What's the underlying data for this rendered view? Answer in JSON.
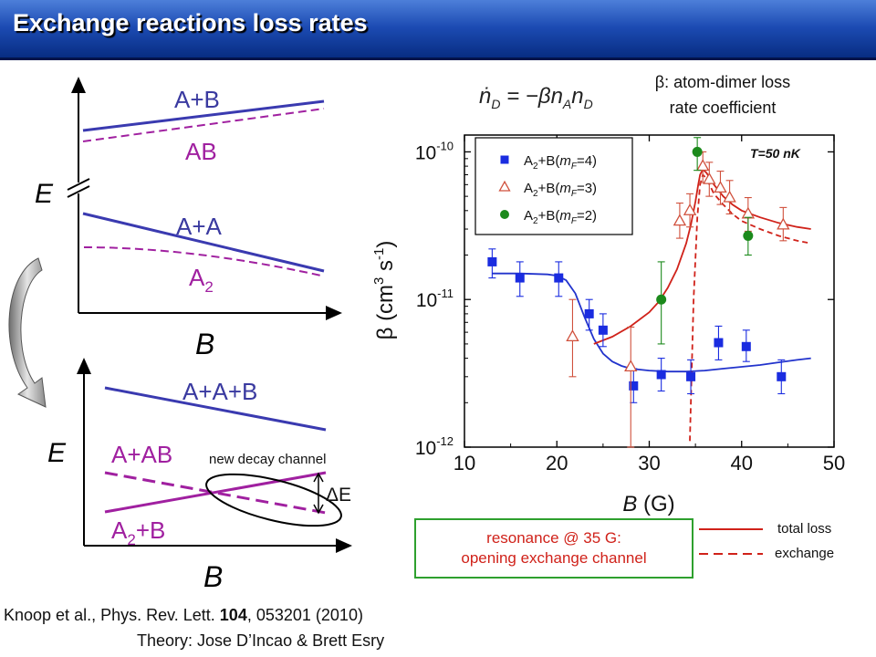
{
  "header": {
    "title": "Exchange reactions loss rates"
  },
  "diagram_top": {
    "axis_y_label": "E",
    "axis_x_label": "B",
    "labels": {
      "ab_upper": "A+B",
      "ab_lower": "AB",
      "aa_upper": "A+A",
      "a2_base": "A",
      "a2_sub": "2"
    }
  },
  "diagram_bottom": {
    "axis_y_label": "E",
    "axis_x_label": "B",
    "labels": {
      "aab": "A+A+B",
      "aab2": "A+AB",
      "a2b_base": "A",
      "a2b_sub": "2",
      "a2b_suffix": "+B",
      "new_decay": "new decay channel",
      "delta_e": "ΔE"
    }
  },
  "equation": {
    "lhs": "ṅ",
    "lhs_sub": "D",
    "rhs": " = −βn",
    "rhs_sub1": "A",
    "rhs_n": "n",
    "rhs_sub2": "D"
  },
  "beta_note": {
    "line1": "β: atom-dimer loss",
    "line2": "rate coefficient"
  },
  "chart_data": {
    "type": "scatter",
    "title": "",
    "xlabel_base": "B",
    "xlabel_unit": "(G)",
    "ylabel_base": "β (cm",
    "ylabel_exp1": "3",
    "ylabel_mid": " s",
    "ylabel_exp2": "-1",
    "ylabel_end": ")",
    "xlim": [
      10,
      50
    ],
    "ylim": [
      1e-12,
      1.3e-10
    ],
    "yscale": "log",
    "annotation": "T=50 nK",
    "x_ticks": [
      "10",
      "20",
      "30",
      "40",
      "50"
    ],
    "y_ticks": [
      {
        "value": 1e-12,
        "base": "10",
        "exp": "-12"
      },
      {
        "value": 1e-11,
        "base": "10",
        "exp": "-11"
      },
      {
        "value": 1e-10,
        "base": "10",
        "exp": "-10"
      }
    ],
    "legend": {
      "placement": "top-left"
    },
    "series": [
      {
        "name": "A2+B(mF=4)",
        "legend_parts": [
          "A",
          "2",
          "+B(",
          "m",
          "F",
          "=4)"
        ],
        "marker": "square",
        "color": "#1a2ce0",
        "points": [
          {
            "x": 13.0,
            "y": 1.8e-11,
            "err": [
              1.4e-11,
              2.2e-11
            ]
          },
          {
            "x": 16.0,
            "y": 1.4e-11,
            "err": [
              1.05e-11,
              1.8e-11
            ]
          },
          {
            "x": 20.2,
            "y": 1.4e-11,
            "err": [
              1.05e-11,
              1.8e-11
            ]
          },
          {
            "x": 23.5,
            "y": 8e-12,
            "err": [
              6.2e-12,
              1e-11
            ]
          },
          {
            "x": 25.0,
            "y": 6.2e-12,
            "err": [
              4.8e-12,
              8e-12
            ]
          },
          {
            "x": 28.3,
            "y": 2.6e-12,
            "err": [
              2e-12,
              3.4e-12
            ]
          },
          {
            "x": 31.3,
            "y": 3.1e-12,
            "err": [
              2.4e-12,
              4e-12
            ]
          },
          {
            "x": 34.5,
            "y": 3e-12,
            "err": [
              2.3e-12,
              3.9e-12
            ]
          },
          {
            "x": 37.5,
            "y": 5.1e-12,
            "err": [
              3.9e-12,
              6.6e-12
            ]
          },
          {
            "x": 40.5,
            "y": 4.8e-12,
            "err": [
              3.8e-12,
              6.2e-12
            ]
          },
          {
            "x": 44.3,
            "y": 3e-12,
            "err": [
              2.3e-12,
              3.9e-12
            ]
          }
        ]
      },
      {
        "name": "A2+B(mF=3)",
        "legend_parts": [
          "A",
          "2",
          "+B(",
          "m",
          "F",
          "=3)"
        ],
        "marker": "triangle-open",
        "color": "#d0503c",
        "points": [
          {
            "x": 21.7,
            "y": 5.6e-12,
            "err": [
              3e-12,
              1e-11
            ]
          },
          {
            "x": 28.0,
            "y": 3.5e-12,
            "err": [
              1e-12,
              6.5e-12
            ]
          },
          {
            "x": 33.3,
            "y": 3.4e-11,
            "err": [
              2.6e-11,
              4.5e-11
            ]
          },
          {
            "x": 34.4,
            "y": 4e-11,
            "err": [
              3.1e-11,
              5.2e-11
            ]
          },
          {
            "x": 35.8,
            "y": 8e-11,
            "err": [
              6.2e-11,
              1e-10
            ]
          },
          {
            "x": 36.5,
            "y": 6.5e-11,
            "err": [
              5e-11,
              8.5e-11
            ]
          },
          {
            "x": 37.7,
            "y": 5.7e-11,
            "err": [
              4.4e-11,
              7.4e-11
            ]
          },
          {
            "x": 38.7,
            "y": 4.9e-11,
            "err": [
              3.8e-11,
              6.4e-11
            ]
          },
          {
            "x": 40.7,
            "y": 3.8e-11,
            "err": [
              2.9e-11,
              4.9e-11
            ]
          },
          {
            "x": 44.5,
            "y": 3.2e-11,
            "err": [
              2.5e-11,
              4.2e-11
            ]
          }
        ]
      },
      {
        "name": "A2+B(mF=2)",
        "legend_parts": [
          "A",
          "2",
          "+B(",
          "m",
          "F",
          "=2)"
        ],
        "marker": "circle",
        "color": "#1c8a1c",
        "points": [
          {
            "x": 31.3,
            "y": 1e-11,
            "err": [
              5e-12,
              1.8e-11
            ]
          },
          {
            "x": 35.2,
            "y": 1e-10,
            "err": [
              7.5e-11,
              1.25e-10
            ]
          },
          {
            "x": 40.7,
            "y": 2.7e-11,
            "err": [
              2e-11,
              3.6e-11
            ]
          }
        ]
      }
    ],
    "fit_curves": [
      {
        "name": "fit-mf4",
        "style": "solid",
        "color": "#2233cc",
        "x": [
          13,
          16,
          19,
          20,
          21,
          22,
          23,
          24,
          25,
          26,
          27,
          28,
          30,
          32,
          34,
          36,
          38,
          40,
          42,
          44,
          46,
          47.5
        ],
        "y": [
          1.5e-11,
          1.5e-11,
          1.48e-11,
          1.45e-11,
          1.35e-11,
          1.1e-11,
          7.6e-12,
          5.4e-12,
          4.3e-12,
          3.8e-12,
          3.55e-12,
          3.4e-12,
          3.3e-12,
          3.25e-12,
          3.25e-12,
          3.3e-12,
          3.4e-12,
          3.5e-12,
          3.6e-12,
          3.75e-12,
          3.9e-12,
          4e-12
        ]
      },
      {
        "name": "fit-total-loss",
        "style": "solid",
        "color": "#d0221a",
        "x": [
          24,
          26,
          28,
          30,
          31,
          32,
          33,
          34,
          34.5,
          35,
          35.3,
          35.5,
          35.8,
          36.2,
          37,
          38,
          39,
          40,
          42,
          44,
          46,
          47.5
        ],
        "y": [
          5e-12,
          5.6e-12,
          6.6e-12,
          8.2e-12,
          9.6e-12,
          1.2e-11,
          1.6e-11,
          2.4e-11,
          3.2e-11,
          4.6e-11,
          6e-11,
          7e-11,
          7.6e-11,
          7.2e-11,
          6e-11,
          5e-11,
          4.4e-11,
          4e-11,
          3.6e-11,
          3.3e-11,
          3.1e-11,
          3e-11
        ]
      },
      {
        "name": "fit-exchange",
        "style": "dashed",
        "color": "#d0221a",
        "x": [
          34.4,
          34.8,
          35.2,
          35.5,
          35.8,
          36.2,
          37,
          38,
          39,
          40,
          42,
          44,
          46,
          47.5
        ],
        "y": [
          1.1e-12,
          1e-11,
          3.6e-11,
          6e-11,
          7e-11,
          6.6e-11,
          5.2e-11,
          4.4e-11,
          3.8e-11,
          3.4e-11,
          3e-11,
          2.7e-11,
          2.5e-11,
          2.4e-11
        ]
      }
    ]
  },
  "resonance_box": {
    "line1": "resonance @ 35 G:",
    "line2": "opening exchange channel"
  },
  "curve_legend": {
    "total": "total loss",
    "exchange": "exchange"
  },
  "footer": {
    "citation_prefix": "Knoop et al., Phys. Rev. Lett. ",
    "citation_volume": "104",
    "citation_suffix": ", 053201 (2010)",
    "theory": "Theory: Jose D’Incao & Brett Esry"
  }
}
